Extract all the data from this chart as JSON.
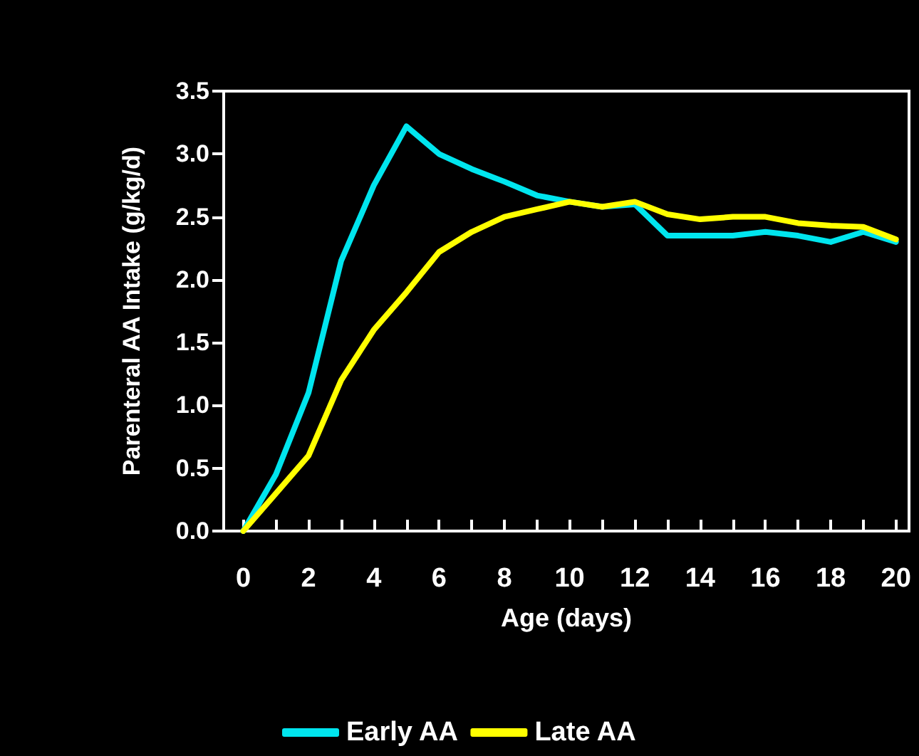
{
  "chart_data": {
    "type": "line",
    "xlabel": "Age (days)",
    "ylabel": "Parenteral AA Intake (g/kg/d)",
    "x": [
      0,
      1,
      2,
      3,
      4,
      5,
      6,
      7,
      8,
      9,
      10,
      11,
      12,
      13,
      14,
      15,
      16,
      17,
      18,
      19,
      20
    ],
    "series": [
      {
        "name": "Early AA",
        "color": "#00e5ee",
        "values": [
          0,
          0.45,
          1.1,
          2.15,
          2.75,
          3.22,
          3.0,
          2.88,
          2.78,
          2.67,
          2.62,
          2.58,
          2.6,
          2.35,
          2.35,
          2.35,
          2.38,
          2.35,
          2.3,
          2.38,
          2.3
        ]
      },
      {
        "name": "Late AA",
        "color": "#ffff00",
        "values": [
          0,
          0.3,
          0.6,
          1.2,
          1.6,
          1.9,
          2.22,
          2.38,
          2.5,
          2.56,
          2.62,
          2.58,
          2.62,
          2.52,
          2.48,
          2.5,
          2.5,
          2.45,
          2.43,
          2.42,
          2.32
        ]
      }
    ],
    "xlim": [
      -0.6,
      20.4
    ],
    "xticks": [
      0,
      {
        "value": 1,
        "label": null
      },
      2,
      {
        "value": 3,
        "label": null
      },
      4,
      {
        "value": 5,
        "label": null
      },
      6,
      {
        "value": 7,
        "label": null
      },
      8,
      {
        "value": 9,
        "label": null
      },
      10,
      {
        "value": 11,
        "label": null
      },
      12,
      {
        "value": 13,
        "label": null
      },
      14,
      {
        "value": 15,
        "label": null
      },
      16,
      {
        "value": 17,
        "label": null
      },
      18,
      {
        "value": 19,
        "label": null
      },
      20
    ],
    "ylim": [
      0,
      3.5
    ],
    "yticks": [
      {
        "value": 0,
        "label": "0.0"
      },
      {
        "value": 0.5,
        "label": "0.5"
      },
      {
        "value": 1,
        "label": "1.0"
      },
      {
        "value": 1.5,
        "label": "1.5"
      },
      {
        "value": 2,
        "label": "2.0"
      },
      {
        "value": 2.5,
        "label": "2.5"
      },
      {
        "value": 3,
        "label": "3.0"
      },
      {
        "value": 3.5,
        "label": "3.5"
      }
    ],
    "grid": false,
    "legend": "bottom",
    "marker": "none",
    "line_style": "solid"
  }
}
